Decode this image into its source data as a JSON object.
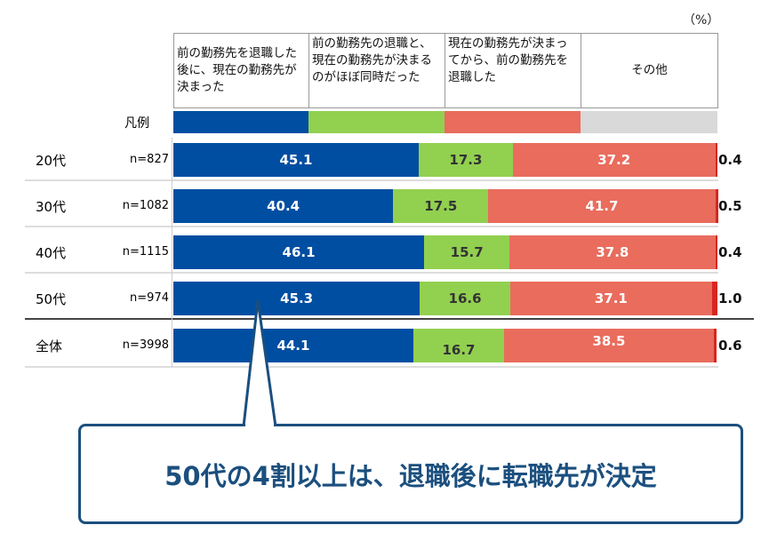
{
  "chart_data": {
    "type": "bar",
    "orientation": "horizontal",
    "stacked": true,
    "unit_label": "（%）",
    "legend_label": "凡例",
    "legend_placement": "top",
    "series": [
      {
        "name": "前の勤務先を退職した後に、現在の勤務先が決まった",
        "color": "#004EA2",
        "values": [
          45.1,
          40.4,
          46.1,
          45.3,
          44.1
        ]
      },
      {
        "name": "前の勤務先の退職と、現在の勤務先が決まるのがほぼ同時だった",
        "color": "#92D050",
        "values": [
          17.3,
          17.5,
          15.7,
          16.6,
          16.7
        ]
      },
      {
        "name": "現在の勤務先が決まってから、前の勤務先を退職した",
        "color": "#E96C5D",
        "values": [
          37.2,
          41.7,
          37.8,
          37.1,
          38.5
        ]
      },
      {
        "name": "その他",
        "color": "#D9D9D9",
        "bar_color": "#D7261E",
        "values": [
          0.4,
          0.5,
          0.4,
          1.0,
          0.6
        ]
      }
    ],
    "categories": [
      "20代",
      "30代",
      "40代",
      "50代",
      "全体"
    ],
    "n": [
      "n=827",
      "n=1082",
      "n=1115",
      "n=974",
      "n=3998"
    ],
    "xlim": [
      0,
      100
    ]
  },
  "callout": {
    "text": "50代の4割以上は、退職後に転職先が決定",
    "color": "#1B4F7E"
  }
}
